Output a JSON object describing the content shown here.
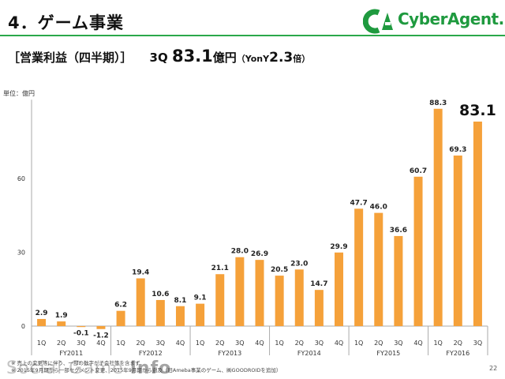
{
  "header": {
    "title": "4．ゲーム事業",
    "logo_text": "CyberAgent."
  },
  "subtitle": {
    "label": "［営業利益（四半期）］",
    "quarter": "3Q",
    "value": "83.1",
    "unit": "億円",
    "yoy_label": "（YonY",
    "yoy_value": "2.3",
    "yoy_unit": "倍）"
  },
  "unit_label": "単位：億円",
  "page_number": "22",
  "footnote": {
    "line1": "※ 売上の変更等に伴う、一部の数字が子会社等を含まず",
    "line2": "※ 2015年9月期から一部セグメント変更、2015年9月期から遡及（旧Ameba事業のゲーム、㈱GOODROIDを追加）"
  },
  "watermark": {
    "text": "Social Game ",
    "bold": "Info"
  },
  "colors": {
    "bar": "#f5a13a",
    "brand": "#1f9a3f",
    "rule": "#2aa84a"
  },
  "chart_data": {
    "type": "bar",
    "title": "",
    "xlabel": "",
    "ylabel": "",
    "ylim": [
      -2,
      92
    ],
    "yticks": [
      0,
      30,
      60
    ],
    "grid": false,
    "legend": "none",
    "categories": [
      "1Q",
      "2Q",
      "3Q",
      "4Q",
      "1Q",
      "2Q",
      "3Q",
      "4Q",
      "1Q",
      "2Q",
      "3Q",
      "4Q",
      "1Q",
      "2Q",
      "3Q",
      "4Q",
      "1Q",
      "2Q",
      "3Q",
      "4Q",
      "1Q",
      "2Q",
      "3Q"
    ],
    "labels": [
      "2.9",
      "1.9",
      "-0.1",
      "-1.2",
      "6.2",
      "19.4",
      "10.6",
      "8.1",
      "9.1",
      "21.1",
      "28.0",
      "26.9",
      "20.5",
      "23.0",
      "14.7",
      "29.9",
      "47.7",
      "46.0",
      "36.6",
      "60.7",
      "88.3",
      "69.3",
      "83.1"
    ],
    "values": [
      2.9,
      1.9,
      -0.1,
      -1.2,
      6.2,
      19.4,
      10.6,
      8.1,
      9.1,
      21.1,
      28.0,
      26.9,
      20.5,
      23.0,
      14.7,
      29.9,
      47.7,
      46.0,
      36.6,
      60.7,
      88.3,
      69.3,
      83.1
    ],
    "highlight_index": 22,
    "groups": [
      {
        "name": "FY2011",
        "count": 4
      },
      {
        "name": "FY2012",
        "count": 4
      },
      {
        "name": "FY2013",
        "count": 4
      },
      {
        "name": "FY2014",
        "count": 4
      },
      {
        "name": "FY2015",
        "count": 4
      },
      {
        "name": "FY2016",
        "count": 3
      }
    ]
  }
}
